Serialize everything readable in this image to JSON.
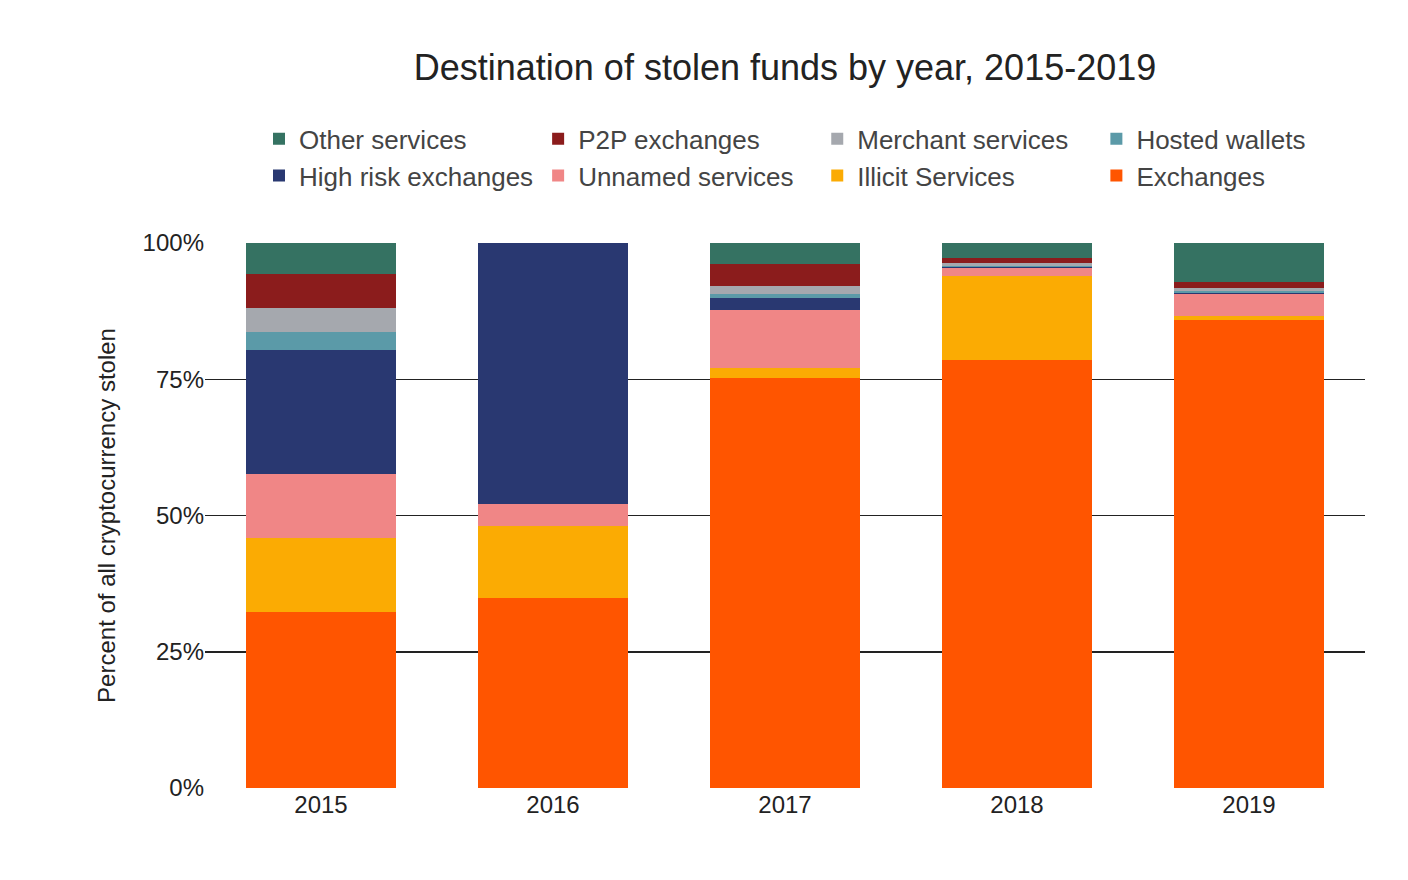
{
  "chart_data": {
    "type": "bar",
    "stacked": true,
    "title": "Destination of stolen funds by year, 2015-2019",
    "y_label": "Percent of all cryptocurrency stolen",
    "categories": [
      "2015",
      "2016",
      "2017",
      "2018",
      "2019"
    ],
    "series": [
      {
        "name": "Exchanges",
        "color": "#ff5500",
        "values": [
          32.3,
          34.9,
          75.2,
          78.5,
          85.9
        ]
      },
      {
        "name": "Illicit Services",
        "color": "#fbab03",
        "values": [
          13.6,
          13.2,
          1.9,
          15.4,
          0.7
        ]
      },
      {
        "name": "Unnamed services",
        "color": "#f08686",
        "values": [
          11.7,
          4.0,
          10.6,
          1.5,
          4.0
        ]
      },
      {
        "name": "High risk exchanges",
        "color": "#293871",
        "values": [
          22.8,
          47.9,
          2.2,
          0.2,
          0.3
        ]
      },
      {
        "name": "Hosted wallets",
        "color": "#5b9aa8",
        "values": [
          3.3,
          0,
          0.7,
          0.2,
          0.3
        ]
      },
      {
        "name": "Merchant services",
        "color": "#a5a8ae",
        "values": [
          4.4,
          0,
          1.5,
          0.5,
          0.5
        ]
      },
      {
        "name": "P2P exchanges",
        "color": "#8b1c1c",
        "values": [
          6.2,
          0,
          4.0,
          0.9,
          1.1
        ]
      },
      {
        "name": "Other services",
        "color": "#357262",
        "values": [
          5.7,
          0,
          3.9,
          2.8,
          7.2
        ]
      }
    ],
    "ylim": [
      0,
      100
    ],
    "yticks": [
      {
        "value": 0,
        "label": "0%"
      },
      {
        "value": 25,
        "label": "25%"
      },
      {
        "value": 50,
        "label": "50%"
      },
      {
        "value": 75,
        "label": "75%"
      },
      {
        "value": 100,
        "label": "100%"
      }
    ],
    "grid": true,
    "legend": "top"
  }
}
